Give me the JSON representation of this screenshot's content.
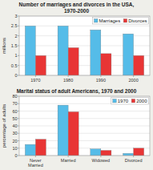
{
  "chart_data": [
    {
      "type": "bar",
      "title": "Number of marriages and divorces in the USA,\n1970-2000",
      "categories": [
        "1970",
        "1980",
        "1990",
        "2000"
      ],
      "series": [
        {
          "name": "Marriages",
          "color": "#55bce8",
          "values": [
            2.5,
            2.5,
            2.3,
            2.1
          ]
        },
        {
          "name": "Divorces",
          "color": "#e83535",
          "values": [
            1.0,
            1.4,
            1.1,
            1.0
          ]
        }
      ],
      "y_label": "millions",
      "ylim": [
        0,
        3
      ],
      "yticks": [
        0,
        0.5,
        1,
        1.5,
        2,
        2.5,
        3
      ],
      "grid": true,
      "legend": "upper right"
    },
    {
      "type": "bar",
      "title": "Marital status of adult Americans, 1970 and 2000",
      "categories": [
        "Never\nMarried",
        "Married",
        "Widowed",
        "Divorced"
      ],
      "series": [
        {
          "name": "1970",
          "color": "#55bce8",
          "values": [
            15,
            68,
            9,
            3
          ]
        },
        {
          "name": "2000",
          "color": "#e83535",
          "values": [
            22,
            59,
            7,
            10
          ]
        }
      ],
      "y_label": "percentage of adults",
      "ylim": [
        0,
        80
      ],
      "yticks": [
        0,
        10,
        20,
        30,
        40,
        50,
        60,
        70,
        80
      ],
      "grid": true,
      "legend": "upper right"
    }
  ]
}
